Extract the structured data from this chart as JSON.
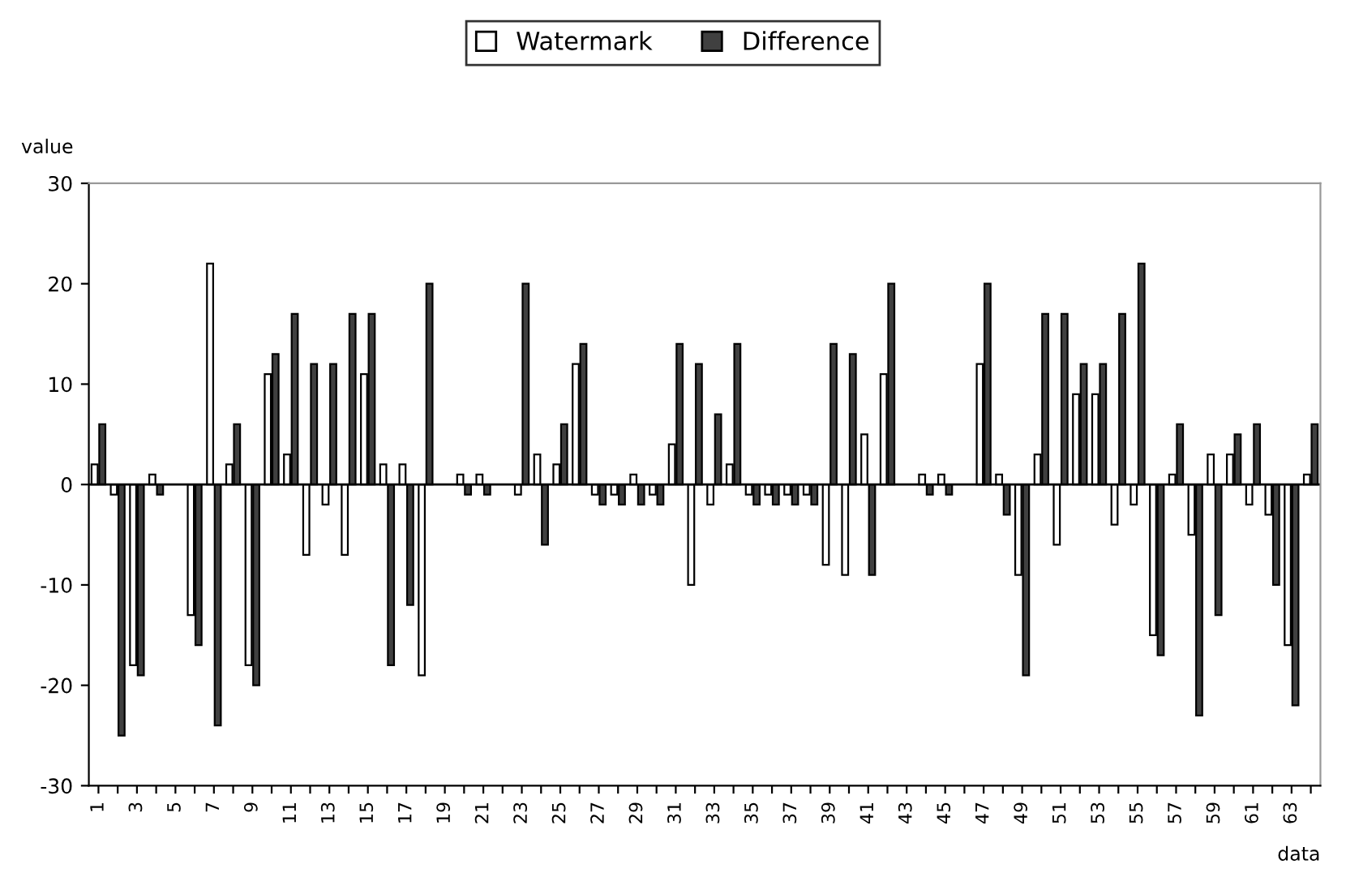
{
  "chart_data": {
    "type": "bar",
    "xlabel": "data",
    "ylabel": "value",
    "categories": [
      "1",
      null,
      "3",
      null,
      "5",
      null,
      "7",
      null,
      "9",
      null,
      "11",
      null,
      "13",
      null,
      "15",
      null,
      "17",
      null,
      "19",
      null,
      "21",
      null,
      "23",
      null,
      "25",
      null,
      "27",
      null,
      "29",
      null,
      "31",
      null,
      "33",
      null,
      "35",
      null,
      "37",
      null,
      "39",
      null,
      "41",
      null,
      "43",
      null,
      "45",
      null,
      "47",
      null,
      "49",
      null,
      "51",
      null,
      "53",
      null,
      "55",
      null,
      "57",
      null,
      "59",
      null,
      "61",
      null,
      "63",
      null
    ],
    "series": [
      {
        "name": "Watermark",
        "color": "#ffffff",
        "values": [
          2,
          -1,
          -18,
          1,
          null,
          -13,
          22,
          2,
          -18,
          11,
          3,
          -7,
          -2,
          -7,
          11,
          2,
          2,
          -19,
          null,
          1,
          1,
          null,
          -1,
          3,
          2,
          12,
          -1,
          -1,
          1,
          -1,
          4,
          -10,
          -2,
          2,
          -1,
          -1,
          -1,
          -1,
          -8,
          -9,
          5,
          11,
          null,
          1,
          1,
          null,
          12,
          1,
          -9,
          3,
          -6,
          9,
          9,
          -4,
          -2,
          -15,
          1,
          -5,
          3,
          3,
          -2,
          -3,
          -16,
          1
        ]
      },
      {
        "name": "Difference",
        "color": "#404040",
        "values": [
          6,
          -25,
          -19,
          -1,
          null,
          -16,
          -24,
          6,
          -20,
          13,
          17,
          12,
          12,
          17,
          17,
          -18,
          -12,
          20,
          null,
          -1,
          -1,
          null,
          20,
          -6,
          6,
          14,
          -2,
          -2,
          -2,
          -2,
          14,
          12,
          7,
          14,
          -2,
          -2,
          -2,
          -2,
          14,
          13,
          -9,
          20,
          null,
          -1,
          -1,
          null,
          20,
          -3,
          -19,
          17,
          17,
          12,
          12,
          17,
          22,
          -17,
          6,
          -23,
          -13,
          5,
          6,
          -10,
          -22,
          6
        ]
      }
    ],
    "ylim": [
      -30,
      30
    ],
    "yticks": [
      -30,
      -20,
      -10,
      0,
      10,
      20,
      30
    ],
    "legend": "top"
  }
}
